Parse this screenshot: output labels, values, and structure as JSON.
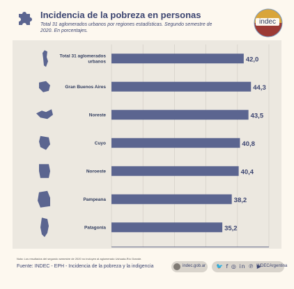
{
  "header": {
    "title": "Incidencia de la pobreza en personas",
    "subtitle": "Total 31 aglomerados urbanos por regiones estadísticas. Segundo semestre de 2020. En porcentajes."
  },
  "logo": {
    "text": "indec"
  },
  "chart_data": {
    "type": "bar",
    "orientation": "horizontal",
    "categories": [
      "Total 31 aglomerados urbanos",
      "Gran Buenos Aires",
      "Noreste",
      "Cuyo",
      "Noroeste",
      "Pampeana",
      "Patagonia"
    ],
    "values": [
      42.0,
      44.3,
      43.5,
      40.8,
      40.4,
      38.2,
      35.2
    ],
    "value_labels": [
      "42,0",
      "44,3",
      "43,5",
      "40,8",
      "40,4",
      "38,2",
      "35,2"
    ],
    "xlim": [
      0,
      50
    ],
    "xticks": [
      0,
      10,
      20,
      30,
      40,
      50
    ],
    "grid": true,
    "bar_color": "#5b6590",
    "title": "",
    "xlabel": "",
    "ylabel": ""
  },
  "footer": {
    "note": "Nota: Los resultados del segundo semestre de 2020 no incluyen al aglomerado Ushuaia-Río Grande.",
    "source": "Fuente: INDEC - EPH - Incidencia de la pobreza y la indigencia",
    "web": "indec.gob.ar",
    "social_handle": "INDECArgentina",
    "social_icons": "🐦 f ◎ in ℗ ▶"
  },
  "colors": {
    "background": "#fdf8ef",
    "panel": "#ece8e0",
    "accent": "#3b4470",
    "map": "#5b6590",
    "logo_top": "#d9a53a",
    "logo_bottom": "#9c3a34"
  }
}
